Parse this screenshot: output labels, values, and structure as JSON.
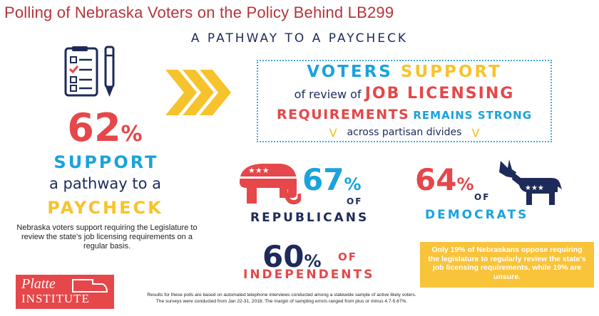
{
  "header": {
    "title": "Polling of Nebraska Voters on the Policy Behind LB299",
    "subtitle": "A PATHWAY TO A PAYCHECK"
  },
  "left": {
    "percent_value": "62",
    "percent_sign": "%",
    "support": "SUPPORT",
    "pathway": "a pathway to a",
    "paycheck": "PAYCHECK",
    "description": "Nebraska voters support requiring the Legislature to review the state's job licensing requirements on a regular basis."
  },
  "banner": {
    "line1_a": "VOTERS",
    "line1_b": "SUPPORT",
    "line2_a": "of review of",
    "line2_b": "JOB LICENSING",
    "line3_a": "REQUIREMENTS",
    "line3_b": "REMAINS STRONG",
    "line4": "across partisan divides"
  },
  "republicans": {
    "value": "67",
    "sign": "%",
    "of": "OF",
    "label": "REPUBLICANS"
  },
  "democrats": {
    "value": "64",
    "sign": "%",
    "of": "OF",
    "label": "DEMOCRATS"
  },
  "independents": {
    "value": "60",
    "sign": "%",
    "of": "OF",
    "label": "INDEPENDENTS"
  },
  "oppose_note": "Only 19% of Nebraskans oppose requiring the legislature to regularly review the state's job licensing requirements, while 19% are unsure.",
  "logo": {
    "line1": "Platte",
    "line2": "INSTITUTE"
  },
  "footer": {
    "line1": "Results for these polls are based on automated telephone interviews conducted among a statewide sample of active likely voters.",
    "line2": "The surveys were conducted from Jan  22-31, 2018. The margin of sampling errors ranged from plus or minus 4.7-5.67%."
  },
  "colors": {
    "red": "#e5474a",
    "blue": "#1aa3dc",
    "navy": "#1e2a5a",
    "yellow": "#f7c32c"
  },
  "icons": [
    "checklist-icon",
    "pen-icon",
    "chevrons-right-icon",
    "elephant-icon",
    "donkey-icon",
    "nebraska-map-icon"
  ]
}
